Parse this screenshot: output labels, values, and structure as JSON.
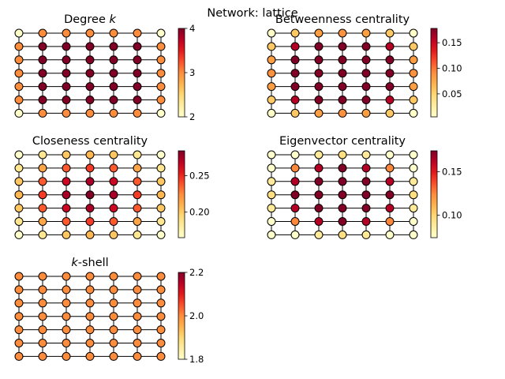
{
  "figure": {
    "suptitle": "Network: lattice"
  },
  "lattice": {
    "cols": 7,
    "rows": 7
  },
  "panels": [
    {
      "title_parts": [
        "Degree ",
        "k"
      ],
      "title_italic": [
        false,
        true
      ],
      "cbar": {
        "min": 2,
        "max": 4,
        "ticks": [
          2,
          3,
          4
        ],
        "tick_labels": [
          "2",
          "3",
          "4"
        ]
      }
    },
    {
      "title_parts": [
        "Betweenness centrality"
      ],
      "title_italic": [
        false
      ],
      "cbar": {
        "min": 0.005,
        "max": 0.178,
        "ticks": [
          0.05,
          0.1,
          0.15
        ],
        "tick_labels": [
          "0.05",
          "0.10",
          "0.15"
        ]
      }
    },
    {
      "title_parts": [
        "Closeness centrality"
      ],
      "title_italic": [
        false
      ],
      "cbar": {
        "min": 0.165,
        "max": 0.284,
        "ticks": [
          0.2,
          0.25
        ],
        "tick_labels": [
          "0.20",
          "0.25"
        ]
      }
    },
    {
      "title_parts": [
        "Eigenvector centrality"
      ],
      "title_italic": [
        false
      ],
      "cbar": {
        "min": 0.074,
        "max": 0.174,
        "ticks": [
          0.1,
          0.15
        ],
        "tick_labels": [
          "0.10",
          "0.15"
        ]
      }
    },
    {
      "title_parts": [
        "k",
        "-shell"
      ],
      "title_italic": [
        true,
        false
      ],
      "cbar": {
        "min": 1.8,
        "max": 2.2,
        "ticks": [
          1.8,
          2.0,
          2.2
        ],
        "tick_labels": [
          "1.8",
          "2.0",
          "2.2"
        ]
      }
    }
  ],
  "colormap": {
    "name": "YlOrRd",
    "stops": [
      "#ffffcc",
      "#ffeda0",
      "#fed976",
      "#feb24c",
      "#fd8d3c",
      "#fc4e2a",
      "#e31a1c",
      "#bd0026",
      "#800026"
    ]
  }
}
